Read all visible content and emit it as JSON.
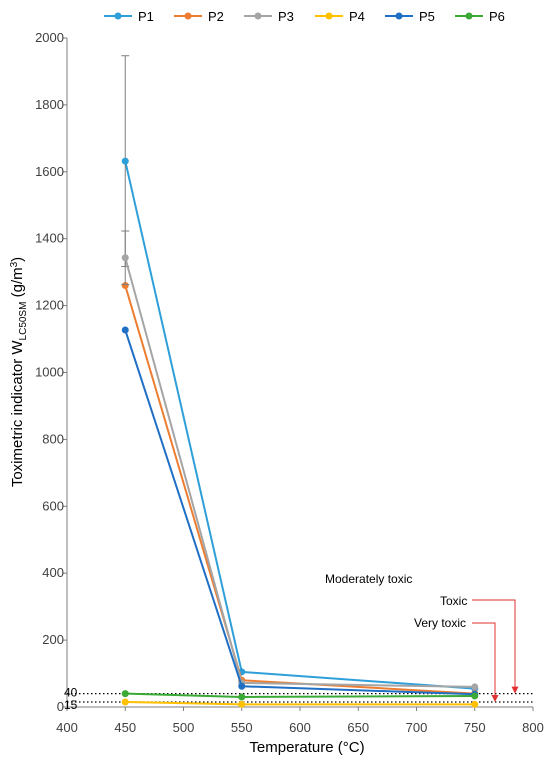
{
  "chart_data": {
    "type": "line",
    "x": [
      450,
      550,
      750
    ],
    "xlim": [
      400,
      800
    ],
    "xticks": [
      400,
      450,
      500,
      550,
      600,
      650,
      700,
      750,
      800
    ],
    "ylim": [
      0,
      2000
    ],
    "yticks": [
      0,
      200,
      400,
      600,
      800,
      1000,
      1200,
      1400,
      1600,
      1800,
      2000
    ],
    "xlabel": "Temperature (°C)",
    "ylabel_main": "Toximetric indicator W",
    "ylabel_sub": "LC50SM",
    "ylabel_unit": " (g/m",
    "ylabel_sup": "3",
    "ylabel_end": ")",
    "legend_position": "top",
    "grid": false,
    "series": [
      {
        "name": "P1",
        "color": "#2E9FD9",
        "values": [
          1632,
          105,
          55
        ],
        "errors": [
          315,
          null,
          null
        ]
      },
      {
        "name": "P2",
        "color": "#ED7D31",
        "values": [
          1260,
          80,
          40
        ],
        "errors": [
          null,
          null,
          null
        ]
      },
      {
        "name": "P3",
        "color": "#A5A5A5",
        "values": [
          1343,
          72,
          60
        ],
        "errors": [
          80,
          null,
          null
        ]
      },
      {
        "name": "P4",
        "color": "#FFC000",
        "values": [
          15,
          8,
          8
        ],
        "errors": [
          null,
          null,
          null
        ]
      },
      {
        "name": "P5",
        "color": "#1F6FC5",
        "values": [
          1127,
          62,
          38
        ],
        "errors": [
          null,
          null,
          null
        ]
      },
      {
        "name": "P6",
        "color": "#3AA935",
        "values": [
          40,
          30,
          33
        ],
        "errors": [
          null,
          null,
          null
        ]
      }
    ],
    "thresholds": [
      {
        "value": 40,
        "label": "40"
      },
      {
        "value": 15,
        "label": "15"
      }
    ],
    "annotations": {
      "moderately_toxic": "Moderately toxic",
      "toxic": "Toxic",
      "very_toxic": "Very toxic"
    },
    "annotation_color": "#E03030"
  }
}
